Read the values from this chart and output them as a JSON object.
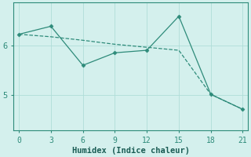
{
  "line1_x": [
    0,
    3,
    6,
    9,
    12,
    15,
    18,
    21
  ],
  "line1_y": [
    6.22,
    6.38,
    5.6,
    5.85,
    5.9,
    6.58,
    5.02,
    4.72
  ],
  "line2_x": [
    0,
    3,
    6,
    9,
    12,
    15,
    18,
    21
  ],
  "line2_y": [
    6.22,
    6.17,
    6.1,
    6.02,
    5.96,
    5.9,
    5.02,
    4.72
  ],
  "line_color": "#2e8b7a",
  "background_color": "#d4f0ed",
  "grid_color": "#b0ddd8",
  "xlabel": "Humidex (Indice chaleur)",
  "xticks": [
    0,
    3,
    6,
    9,
    12,
    15,
    18,
    21
  ],
  "yticks": [
    5,
    6
  ],
  "xlim": [
    -0.5,
    21.5
  ],
  "ylim": [
    4.3,
    6.85
  ],
  "tick_color": "#2e8b7a",
  "spine_color": "#2e8b7a"
}
